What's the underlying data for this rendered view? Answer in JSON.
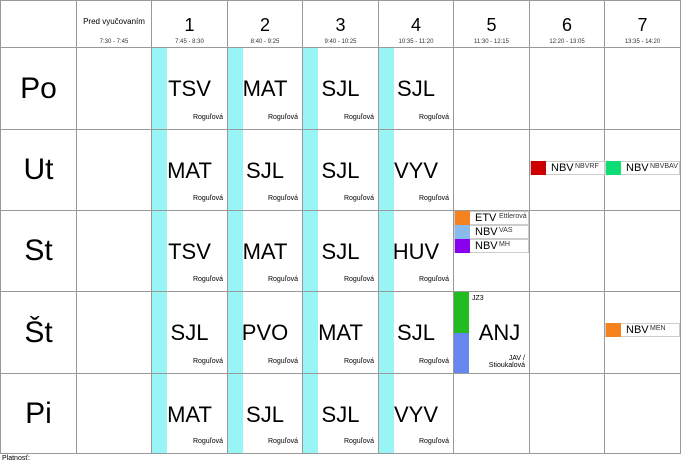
{
  "header": {
    "columns": [
      {
        "label": "Pred vyučovaním",
        "time": "7:30 - 7:45"
      },
      {
        "label": "1",
        "time": "7:45 - 8:30"
      },
      {
        "label": "2",
        "time": "8:40 - 9:25"
      },
      {
        "label": "3",
        "time": "9:40 - 10:25"
      },
      {
        "label": "4",
        "time": "10:35 - 11:20"
      },
      {
        "label": "5",
        "time": "11:30 - 12:15"
      },
      {
        "label": "6",
        "time": "12:20 - 13:05"
      },
      {
        "label": "7",
        "time": "13:35 - 14:20"
      }
    ]
  },
  "days": [
    {
      "day": "Po",
      "cells": [
        null,
        {
          "subject": "TSV",
          "teacher": "Roguľová"
        },
        {
          "subject": "MAT",
          "teacher": "Roguľová"
        },
        {
          "subject": "SJL",
          "teacher": "Roguľová"
        },
        {
          "subject": "SJL",
          "teacher": "Roguľová"
        },
        null,
        null,
        null
      ]
    },
    {
      "day": "Ut",
      "cells": [
        null,
        {
          "subject": "MAT",
          "teacher": "Roguľová"
        },
        {
          "subject": "SJL",
          "teacher": "Roguľová"
        },
        {
          "subject": "SJL",
          "teacher": "Roguľová"
        },
        {
          "subject": "VYV",
          "teacher": "Roguľová"
        },
        null,
        {
          "items": [
            {
              "subject": "NBV",
              "note": "NBVRF",
              "color": "#cc0000"
            }
          ]
        },
        {
          "items": [
            {
              "subject": "NBV",
              "note": "NBVBAV",
              "color": "#11dd77"
            }
          ]
        }
      ]
    },
    {
      "day": "St",
      "cells": [
        null,
        {
          "subject": "TSV",
          "teacher": "Roguľová"
        },
        {
          "subject": "MAT",
          "teacher": "Roguľová"
        },
        {
          "subject": "SJL",
          "teacher": "Roguľová"
        },
        {
          "subject": "HUV",
          "teacher": "Roguľová"
        },
        {
          "items": [
            {
              "subject": "ETV",
              "note": "Ettlerová",
              "color": "#f5821f"
            },
            {
              "subject": "NBV",
              "note": "VAS",
              "color": "#88bbee"
            },
            {
              "subject": "NBV",
              "note": "MH",
              "color": "#8800ee"
            }
          ]
        },
        null,
        null
      ]
    },
    {
      "day": "Št",
      "cells": [
        null,
        {
          "subject": "SJL",
          "teacher": "Roguľová"
        },
        {
          "subject": "PVO",
          "teacher": "Roguľová"
        },
        {
          "subject": "MAT",
          "teacher": "Roguľová"
        },
        {
          "subject": "SJL",
          "teacher": "Roguľová"
        },
        {
          "subject": "ANJ",
          "teacher": "JAV / Stioukalová",
          "groups": [
            {
              "label": "JZ3",
              "color": "#22bb22"
            },
            {
              "color": "#6688ee"
            }
          ]
        },
        null,
        {
          "items": [
            {
              "subject": "NBV",
              "note": "MEN",
              "color": "#f5821f"
            }
          ]
        }
      ]
    },
    {
      "day": "Pi",
      "cells": [
        null,
        {
          "subject": "MAT",
          "teacher": "Roguľová"
        },
        {
          "subject": "SJL",
          "teacher": "Roguľová"
        },
        {
          "subject": "SJL",
          "teacher": "Roguľová"
        },
        {
          "subject": "VYV",
          "teacher": "Roguľová"
        },
        null,
        null,
        null
      ]
    }
  ],
  "footer": "Platnosť:"
}
